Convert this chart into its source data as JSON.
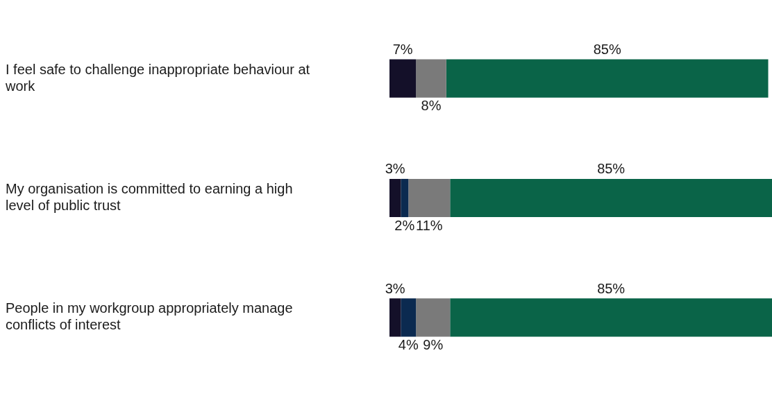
{
  "chart_data": {
    "type": "bar",
    "orientation": "horizontal",
    "stacked": true,
    "categories": [
      "I feel safe to challenge inappropriate behaviour at work",
      "My organisation is committed to earning a high level of public trust",
      "People in my workgroup appropriately manage conflicts of interest"
    ],
    "series": [
      {
        "color": "#141029",
        "values": [
          7,
          3,
          3
        ],
        "value_labels": [
          "7%",
          "3%",
          "3%"
        ]
      },
      {
        "color": "#0b2a50",
        "values": [
          0,
          2,
          4
        ],
        "value_labels": [
          null,
          "2%",
          "4%"
        ]
      },
      {
        "color": "#7a7a7a",
        "values": [
          8,
          11,
          9
        ],
        "value_labels": [
          "8%",
          "11%",
          "9%"
        ]
      },
      {
        "color": "#0a6448",
        "values": [
          85,
          85,
          85
        ],
        "value_labels": [
          "85%",
          "85%",
          "85%"
        ]
      }
    ],
    "grid": false,
    "legend": false
  }
}
